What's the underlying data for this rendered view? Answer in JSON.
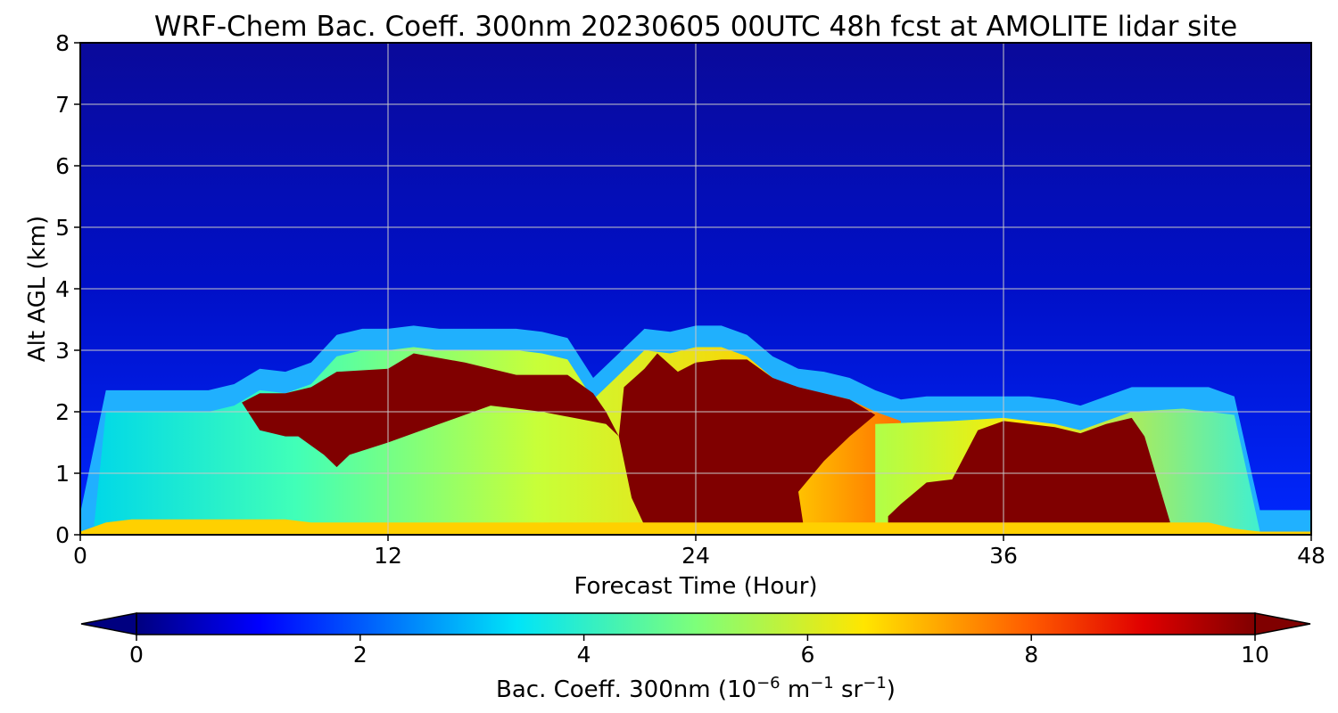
{
  "chart_data": {
    "type": "heatmap",
    "title": "WRF-Chem Bac. Coeff. 300nm  20230605 00UTC 48h fcst at AMOLITE lidar site",
    "xlabel": "Forecast Time (Hour)",
    "ylabel": "Alt AGL (km)",
    "xlim": [
      0,
      48
    ],
    "ylim": [
      0,
      8
    ],
    "x_ticks": [
      0,
      12,
      24,
      36,
      48
    ],
    "x_tick_labels": [
      "0",
      "12",
      "24",
      "36",
      "48"
    ],
    "y_ticks": [
      0,
      1,
      2,
      3,
      4,
      5,
      6,
      7,
      8
    ],
    "y_tick_labels": [
      "0",
      "1",
      "2",
      "3",
      "4",
      "5",
      "6",
      "7",
      "8"
    ],
    "grid": true,
    "colormap": "jet",
    "colorbar": {
      "label_main": "Bac. Coeff. 300nm  (10",
      "label_exp1": "−6",
      "label_unit1": " m",
      "label_exp2": "−1",
      "label_unit2": " sr",
      "label_exp3": "−1",
      "label_close": ")",
      "range": [
        0,
        10
      ],
      "ticks": [
        0,
        2,
        4,
        6,
        8,
        10
      ],
      "tick_labels": [
        "0",
        "2",
        "4",
        "6",
        "8",
        "10"
      ],
      "extend": "both",
      "orientation": "horizontal"
    },
    "x": [
      0,
      1,
      2,
      3,
      4,
      5,
      6,
      7,
      8,
      9,
      10,
      11,
      12,
      13,
      14,
      15,
      16,
      17,
      18,
      19,
      20,
      21,
      22,
      23,
      24,
      25,
      26,
      27,
      28,
      29,
      30,
      31,
      32,
      33,
      34,
      35,
      36,
      37,
      38,
      39,
      40,
      41,
      42,
      43,
      44,
      45,
      46,
      47,
      48
    ],
    "layers": {
      "surface_top_km": [
        0.05,
        0.2,
        0.25,
        0.25,
        0.25,
        0.25,
        0.25,
        0.25,
        0.25,
        0.2,
        0.2,
        0.2,
        0.2,
        0.2,
        0.2,
        0.2,
        0.2,
        0.2,
        0.2,
        0.2,
        0.2,
        0.2,
        0.2,
        0.2,
        0.2,
        0.2,
        0.2,
        0.2,
        0.2,
        0.2,
        0.2,
        0.2,
        0.2,
        0.2,
        0.2,
        0.2,
        0.2,
        0.2,
        0.2,
        0.2,
        0.2,
        0.2,
        0.2,
        0.2,
        0.2,
        0.1,
        0.05,
        0.05,
        0.05
      ],
      "aerosol_layer_top_km": [
        0.0,
        2.0,
        2.0,
        2.0,
        2.0,
        2.0,
        2.1,
        2.35,
        2.3,
        2.45,
        2.9,
        3.0,
        3.0,
        3.05,
        3.0,
        3.0,
        3.0,
        3.0,
        2.95,
        2.85,
        2.2,
        2.6,
        3.0,
        2.95,
        3.05,
        3.05,
        2.9,
        2.55,
        2.35,
        2.3,
        2.2,
        2.0,
        1.85,
        1.9,
        1.9,
        1.9,
        1.9,
        1.9,
        1.85,
        1.75,
        1.9,
        2.05,
        2.05,
        2.05,
        2.05,
        1.9,
        0.05,
        0.05,
        0.05
      ]
    },
    "value_range_note": ""
  }
}
